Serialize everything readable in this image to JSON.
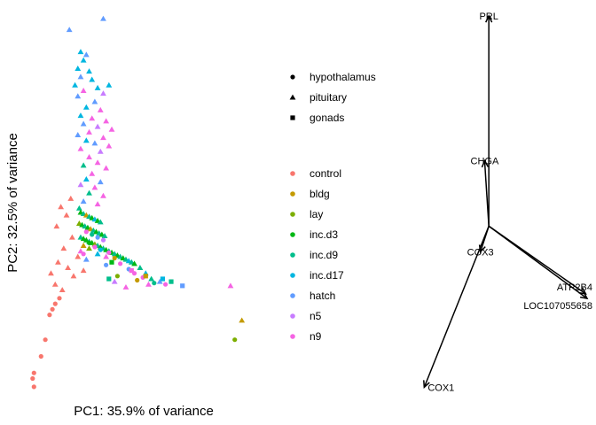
{
  "chart_data": [
    {
      "type": "scatter",
      "title": "",
      "xlabel": "PC1: 35.9% of variance",
      "ylabel": "PC2: 32.5% of variance",
      "xlim": [
        -0.5,
        8.0
      ],
      "ylim": [
        -4.2,
        9.3
      ],
      "grid": false,
      "legend_placement": "right",
      "shape_legend": [
        {
          "name": "hypothalamus",
          "shape": "circle"
        },
        {
          "name": "pituitary",
          "shape": "triangle"
        },
        {
          "name": "gonads",
          "shape": "square"
        }
      ],
      "color_legend": [
        {
          "name": "control",
          "color": "#F8766D"
        },
        {
          "name": "bldg",
          "color": "#C49A00"
        },
        {
          "name": "lay",
          "color": "#7CAE00"
        },
        {
          "name": "inc.d3",
          "color": "#00B815"
        },
        {
          "name": "inc.d9",
          "color": "#00BE8B"
        },
        {
          "name": "inc.d17",
          "color": "#00B6E0"
        },
        {
          "name": "hatch",
          "color": "#619CFF"
        },
        {
          "name": "n5",
          "color": "#C77CFF"
        },
        {
          "name": "n9",
          "color": "#F564E3"
        }
      ],
      "points": [
        [
          2.4,
          9.2,
          "triangle",
          "hatch"
        ],
        [
          1.2,
          8.8,
          "triangle",
          "hatch"
        ],
        [
          1.6,
          8.0,
          "triangle",
          "inc.d17"
        ],
        [
          1.7,
          7.7,
          "triangle",
          "inc.d17"
        ],
        [
          1.8,
          7.9,
          "triangle",
          "hatch"
        ],
        [
          1.5,
          7.4,
          "triangle",
          "inc.d17"
        ],
        [
          1.9,
          7.3,
          "triangle",
          "inc.d17"
        ],
        [
          1.6,
          7.1,
          "triangle",
          "hatch"
        ],
        [
          2.0,
          7.0,
          "triangle",
          "inc.d17"
        ],
        [
          1.4,
          6.8,
          "triangle",
          "inc.d17"
        ],
        [
          2.2,
          6.7,
          "triangle",
          "inc.d17"
        ],
        [
          1.7,
          6.6,
          "triangle",
          "n9"
        ],
        [
          2.6,
          6.8,
          "triangle",
          "inc.d17"
        ],
        [
          2.4,
          6.5,
          "triangle",
          "n5"
        ],
        [
          1.5,
          6.4,
          "triangle",
          "hatch"
        ],
        [
          2.1,
          6.2,
          "triangle",
          "hatch"
        ],
        [
          1.8,
          6.0,
          "triangle",
          "inc.d17"
        ],
        [
          2.3,
          5.9,
          "triangle",
          "n9"
        ],
        [
          1.6,
          5.7,
          "triangle",
          "inc.d17"
        ],
        [
          2.0,
          5.6,
          "triangle",
          "n9"
        ],
        [
          2.5,
          5.5,
          "triangle",
          "n9"
        ],
        [
          1.7,
          5.4,
          "triangle",
          "hatch"
        ],
        [
          2.2,
          5.3,
          "triangle",
          "n5"
        ],
        [
          2.7,
          5.2,
          "triangle",
          "n9"
        ],
        [
          1.9,
          5.1,
          "triangle",
          "n9"
        ],
        [
          1.5,
          5.0,
          "triangle",
          "hatch"
        ],
        [
          2.4,
          4.9,
          "triangle",
          "n9"
        ],
        [
          1.8,
          4.8,
          "triangle",
          "inc.d17"
        ],
        [
          2.1,
          4.7,
          "triangle",
          "hatch"
        ],
        [
          2.6,
          4.6,
          "triangle",
          "n9"
        ],
        [
          1.6,
          4.5,
          "triangle",
          "n9"
        ],
        [
          2.3,
          4.4,
          "triangle",
          "n5"
        ],
        [
          1.9,
          4.2,
          "triangle",
          "n9"
        ],
        [
          2.2,
          4.0,
          "triangle",
          "n9"
        ],
        [
          1.7,
          3.9,
          "triangle",
          "inc.d9"
        ],
        [
          2.5,
          3.8,
          "triangle",
          "n9"
        ],
        [
          2.0,
          3.6,
          "triangle",
          "n9"
        ],
        [
          1.8,
          3.4,
          "triangle",
          "inc.d17"
        ],
        [
          2.3,
          3.3,
          "triangle",
          "hatch"
        ],
        [
          1.6,
          3.2,
          "triangle",
          "n5"
        ],
        [
          2.1,
          3.1,
          "triangle",
          "n9"
        ],
        [
          1.9,
          2.9,
          "triangle",
          "inc.d9"
        ],
        [
          2.4,
          2.8,
          "triangle",
          "n9"
        ],
        [
          1.7,
          2.6,
          "triangle",
          "hatch"
        ],
        [
          2.2,
          2.5,
          "triangle",
          "n9"
        ],
        [
          1.55,
          2.35,
          "triangle",
          "inc.d9"
        ],
        [
          1.6,
          2.2,
          "triangle",
          "inc.d3"
        ],
        [
          1.7,
          2.15,
          "triangle",
          "inc.d9"
        ],
        [
          1.8,
          2.1,
          "triangle",
          "bldg"
        ],
        [
          1.9,
          2.05,
          "triangle",
          "inc.d9"
        ],
        [
          2.0,
          2.0,
          "triangle",
          "inc.d3"
        ],
        [
          2.1,
          1.95,
          "triangle",
          "inc.d17"
        ],
        [
          2.2,
          1.9,
          "triangle",
          "inc.d3"
        ],
        [
          2.3,
          1.85,
          "triangle",
          "inc.d9"
        ],
        [
          1.55,
          1.8,
          "triangle",
          "lay"
        ],
        [
          1.65,
          1.75,
          "triangle",
          "inc.d3"
        ],
        [
          1.75,
          1.7,
          "triangle",
          "inc.d9"
        ],
        [
          1.85,
          1.65,
          "triangle",
          "inc.d3"
        ],
        [
          1.95,
          1.6,
          "triangle",
          "bldg"
        ],
        [
          2.05,
          1.55,
          "triangle",
          "inc.d9"
        ],
        [
          2.15,
          1.5,
          "triangle",
          "inc.d3"
        ],
        [
          2.25,
          1.45,
          "triangle",
          "inc.d9"
        ],
        [
          2.35,
          1.4,
          "triangle",
          "inc.d3"
        ],
        [
          2.45,
          1.35,
          "triangle",
          "inc.d9"
        ],
        [
          1.6,
          1.3,
          "triangle",
          "inc.d9"
        ],
        [
          1.7,
          1.25,
          "triangle",
          "inc.d3"
        ],
        [
          1.8,
          1.2,
          "triangle",
          "inc.d3"
        ],
        [
          1.9,
          1.15,
          "triangle",
          "inc.d9"
        ],
        [
          2.0,
          1.1,
          "triangle",
          "inc.d3"
        ],
        [
          2.1,
          1.05,
          "triangle",
          "lay"
        ],
        [
          2.2,
          1.0,
          "triangle",
          "inc.d9"
        ],
        [
          2.3,
          0.95,
          "triangle",
          "inc.d3"
        ],
        [
          2.4,
          0.9,
          "triangle",
          "inc.d9"
        ],
        [
          2.5,
          0.85,
          "triangle",
          "inc.d3"
        ],
        [
          2.6,
          0.8,
          "triangle",
          "inc.d9"
        ],
        [
          2.7,
          0.75,
          "triangle",
          "inc.d3"
        ],
        [
          2.8,
          0.7,
          "triangle",
          "inc.d9"
        ],
        [
          2.9,
          0.65,
          "triangle",
          "inc.d3"
        ],
        [
          3.0,
          0.6,
          "triangle",
          "inc.d9"
        ],
        [
          3.1,
          0.55,
          "triangle",
          "inc.d3"
        ],
        [
          3.2,
          0.5,
          "triangle",
          "inc.d9"
        ],
        [
          3.3,
          0.45,
          "triangle",
          "inc.d17"
        ],
        [
          3.4,
          0.4,
          "triangle",
          "inc.d9"
        ],
        [
          3.5,
          0.35,
          "triangle",
          "inc.d3"
        ],
        [
          1.7,
          1.0,
          "triangle",
          "bldg"
        ],
        [
          1.9,
          0.9,
          "triangle",
          "lay"
        ],
        [
          2.2,
          0.7,
          "triangle",
          "inc.d17"
        ],
        [
          2.5,
          0.6,
          "triangle",
          "n9"
        ],
        [
          1.6,
          0.8,
          "triangle",
          "n9"
        ],
        [
          1.8,
          0.5,
          "triangle",
          "hatch"
        ],
        [
          3.7,
          0.2,
          "triangle",
          "inc.d9"
        ],
        [
          3.9,
          0.0,
          "triangle",
          "inc.d17"
        ],
        [
          4.1,
          -0.2,
          "triangle",
          "inc.d9"
        ],
        [
          4.4,
          -0.3,
          "triangle",
          "hatch"
        ],
        [
          4.0,
          -0.4,
          "triangle",
          "n9"
        ],
        [
          2.8,
          -0.3,
          "triangle",
          "n5"
        ],
        [
          3.2,
          -0.5,
          "triangle",
          "n9"
        ],
        [
          6.9,
          -0.45,
          "triangle",
          "n9"
        ],
        [
          7.3,
          -1.7,
          "triangle",
          "bldg"
        ],
        [
          1.25,
          2.7,
          "triangle",
          "control"
        ],
        [
          0.9,
          2.4,
          "triangle",
          "control"
        ],
        [
          1.1,
          2.1,
          "triangle",
          "control"
        ],
        [
          0.75,
          1.7,
          "triangle",
          "control"
        ],
        [
          1.3,
          1.3,
          "triangle",
          "control"
        ],
        [
          1.0,
          0.9,
          "triangle",
          "control"
        ],
        [
          0.8,
          0.4,
          "triangle",
          "control"
        ],
        [
          1.15,
          0.2,
          "triangle",
          "control"
        ],
        [
          0.55,
          0.0,
          "triangle",
          "control"
        ],
        [
          1.35,
          -0.1,
          "triangle",
          "control"
        ],
        [
          0.7,
          -0.4,
          "triangle",
          "control"
        ],
        [
          0.95,
          -0.6,
          "triangle",
          "control"
        ],
        [
          1.7,
          0.1,
          "triangle",
          "control"
        ],
        [
          1.5,
          0.6,
          "triangle",
          "control"
        ],
        [
          0.85,
          -0.9,
          "circle",
          "control"
        ],
        [
          0.7,
          -1.1,
          "circle",
          "control"
        ],
        [
          0.6,
          -1.3,
          "circle",
          "control"
        ],
        [
          0.5,
          -1.5,
          "circle",
          "control"
        ],
        [
          0.35,
          -2.4,
          "circle",
          "control"
        ],
        [
          0.2,
          -3.0,
          "circle",
          "control"
        ],
        [
          -0.05,
          -3.6,
          "circle",
          "control"
        ],
        [
          -0.1,
          -3.8,
          "circle",
          "control"
        ],
        [
          -0.05,
          -4.1,
          "circle",
          "control"
        ],
        [
          1.8,
          1.5,
          "circle",
          "n9"
        ],
        [
          2.0,
          1.4,
          "circle",
          "inc.d9"
        ],
        [
          2.2,
          1.3,
          "circle",
          "hatch"
        ],
        [
          2.4,
          1.2,
          "circle",
          "n5"
        ],
        [
          1.9,
          1.1,
          "circle",
          "inc.d3"
        ],
        [
          2.1,
          0.95,
          "circle",
          "n9"
        ],
        [
          2.3,
          0.85,
          "circle",
          "inc.d17"
        ],
        [
          2.6,
          0.75,
          "circle",
          "n9"
        ],
        [
          2.8,
          0.55,
          "circle",
          "bldg"
        ],
        [
          3.0,
          0.35,
          "circle",
          "n9"
        ],
        [
          3.3,
          0.15,
          "circle",
          "hatch"
        ],
        [
          3.5,
          0.0,
          "circle",
          "n9"
        ],
        [
          3.8,
          -0.15,
          "circle",
          "n9"
        ],
        [
          4.2,
          -0.35,
          "circle",
          "inc.d9"
        ],
        [
          4.6,
          -0.4,
          "circle",
          "n9"
        ],
        [
          3.6,
          -0.25,
          "circle",
          "bldg"
        ],
        [
          2.9,
          -0.1,
          "circle",
          "lay"
        ],
        [
          2.5,
          0.3,
          "circle",
          "hatch"
        ],
        [
          1.7,
          0.7,
          "circle",
          "n9"
        ],
        [
          7.05,
          -2.4,
          "circle",
          "lay"
        ],
        [
          4.8,
          -0.3,
          "square",
          "inc.d9"
        ],
        [
          5.2,
          -0.45,
          "square",
          "hatch"
        ],
        [
          4.5,
          -0.2,
          "square",
          "inc.d17"
        ],
        [
          3.4,
          0.1,
          "square",
          "n9"
        ],
        [
          2.7,
          0.4,
          "square",
          "inc.d3"
        ],
        [
          3.9,
          -0.1,
          "square",
          "bldg"
        ],
        [
          2.6,
          -0.2,
          "square",
          "inc.d9"
        ]
      ]
    },
    {
      "type": "biplot",
      "title": "",
      "xlim": [
        -5,
        7
      ],
      "ylim": [
        -7,
        9
      ],
      "arrows": [
        {
          "label": "PRL",
          "x": 0.0,
          "y": 9.0
        },
        {
          "label": "CHGA",
          "x": -0.3,
          "y": 2.8
        },
        {
          "label": "COX3",
          "x": -0.6,
          "y": -1.1
        },
        {
          "label": "ATP2B4",
          "x": 6.9,
          "y": -2.9
        },
        {
          "label": "LOC107055658",
          "x": 7.0,
          "y": -3.1
        },
        {
          "label": "COX1",
          "x": -4.6,
          "y": -6.9
        }
      ]
    }
  ],
  "colors": {
    "control": "#F8766D",
    "bldg": "#C49A00",
    "lay": "#7CAE00",
    "inc.d3": "#00B815",
    "inc.d9": "#00BE8B",
    "inc.d17": "#00B6E0",
    "hatch": "#619CFF",
    "n5": "#C77CFF",
    "n9": "#F564E3"
  }
}
